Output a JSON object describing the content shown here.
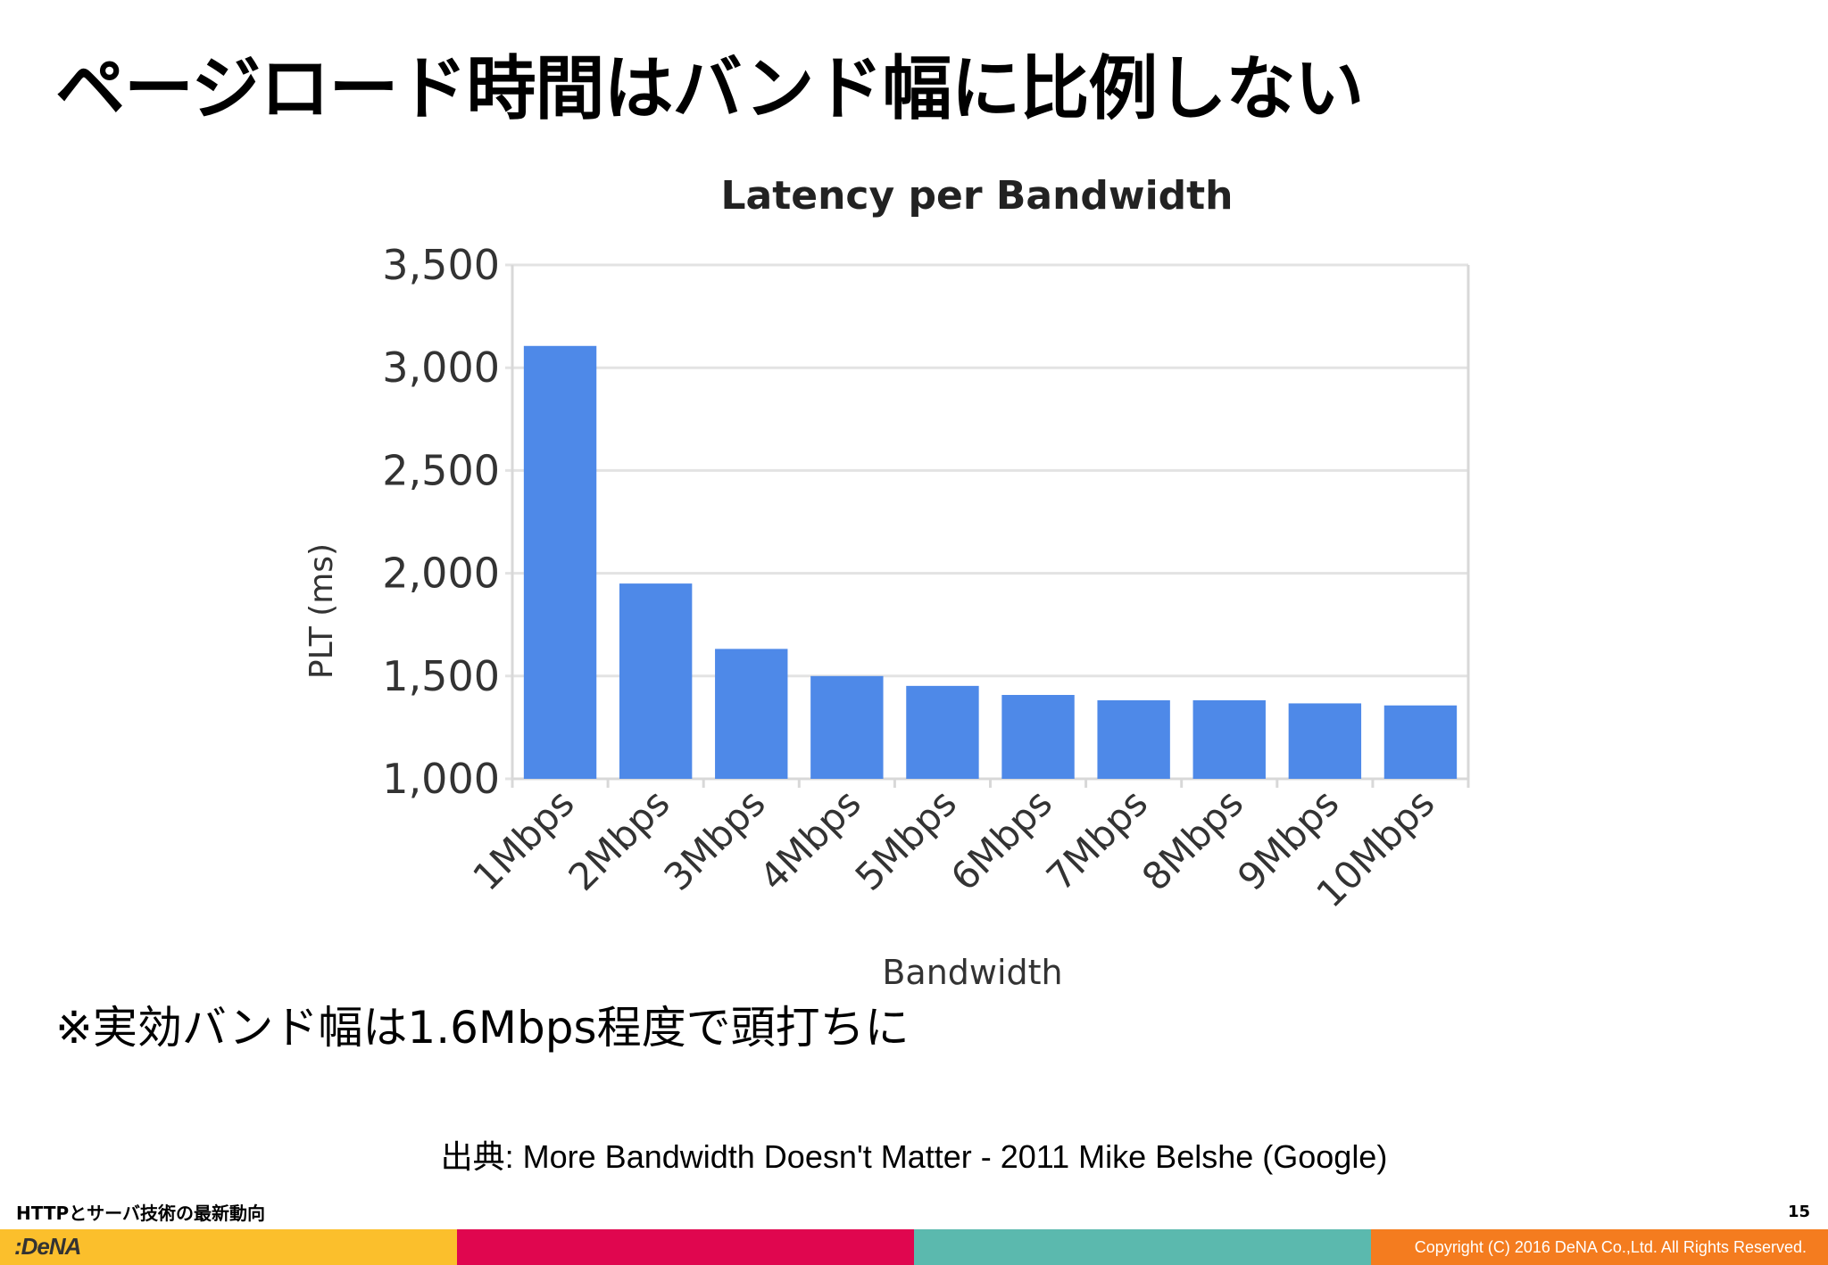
{
  "slide": {
    "title": "ページロード時間はバンド幅に比例しない",
    "note": "※実効バンド幅は1.6Mbps程度で頭打ちに",
    "source": "出典: More Bandwidth Doesn't Matter - 2011 Mike Belshe (Google)"
  },
  "footer": {
    "title": "HTTPとサーバ技術の最新動向",
    "page_number": "15",
    "logo": ":DeNA",
    "copyright": "Copyright (C) 2016 DeNA Co.,Ltd. All Rights Reserved.",
    "bar_colors": [
      "#fbbf2c",
      "#e0064f",
      "#5bb9ae",
      "#f47c1f"
    ]
  },
  "chart_data": {
    "type": "bar",
    "title": "Latency per Bandwidth",
    "xlabel": "Bandwidth",
    "ylabel": "PLT (ms)",
    "categories": [
      "1Mbps",
      "2Mbps",
      "3Mbps",
      "4Mbps",
      "5Mbps",
      "6Mbps",
      "7Mbps",
      "8Mbps",
      "9Mbps",
      "10Mbps"
    ],
    "values": [
      3106,
      1950,
      1632,
      1500,
      1452,
      1408,
      1382,
      1382,
      1367,
      1357
    ],
    "ylim": [
      1000,
      3500
    ],
    "yticks": [
      1000,
      1500,
      2000,
      2500,
      3000,
      3500
    ],
    "ytick_labels": [
      "1,000",
      "1,500",
      "2,000",
      "2,500",
      "3,000",
      "3,500"
    ],
    "bar_color": "#4e89e8",
    "grid": true
  }
}
